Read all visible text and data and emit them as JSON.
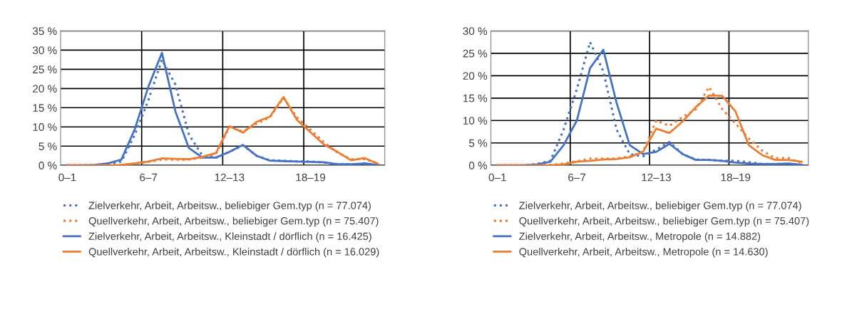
{
  "chart_data": [
    {
      "type": "line",
      "categories": [
        "0–1",
        null,
        null,
        null,
        null,
        null,
        "6–7",
        null,
        null,
        null,
        null,
        null,
        "12–13",
        null,
        null,
        null,
        null,
        null,
        "18–19",
        null,
        null,
        null,
        null,
        null
      ],
      "ylim": [
        0,
        35
      ],
      "yticks": [
        {
          "value": 0,
          "label": "0 %"
        },
        {
          "value": 5,
          "label": "5 %"
        },
        {
          "value": 10,
          "label": "10 %"
        },
        {
          "value": 15,
          "label": "15 %"
        },
        {
          "value": 20,
          "label": "20 %"
        },
        {
          "value": 25,
          "label": "25 %"
        },
        {
          "value": 30,
          "label": "30 %"
        },
        {
          "value": 35,
          "label": "35 %"
        }
      ],
      "grid": true,
      "legend": "bottom",
      "marker": "none",
      "series": [
        {
          "name": "Zielverkehr, Arbeit, Arbeitsw., beliebiger Gem.typ (n = 77.074)",
          "color": "#4472c4",
          "line_style": "dotted",
          "values": [
            0,
            0,
            0,
            0.3,
            1,
            8,
            17,
            27.5,
            21,
            8,
            2.5,
            2,
            3.5,
            5.2,
            2.5,
            1.3,
            1.2,
            1,
            1,
            0.7,
            0.3,
            0.3,
            0.3,
            0.1
          ]
        },
        {
          "name": "Quellverkehr, Arbeit, Arbeitsw., beliebiger Gem.typ (n = 75.407)",
          "color": "#ed7d31",
          "line_style": "dotted",
          "values": [
            0,
            0,
            0,
            0,
            0.1,
            0.4,
            0.9,
            1.5,
            1.5,
            1.5,
            2,
            3,
            10,
            8.8,
            10.8,
            12.5,
            17.5,
            12.5,
            9.3,
            6,
            3.3,
            1.6,
            1.6,
            0.5
          ]
        },
        {
          "name": "Zielverkehr, Arbeit, Arbeitsw., Kleinstadt / dörflich (n = 16.425)",
          "color": "#4472c4",
          "line_style": "solid",
          "values": [
            0,
            0,
            0.1,
            0.5,
            1.5,
            9.5,
            20.5,
            29.3,
            14,
            4.5,
            2,
            2,
            3.5,
            5.3,
            2.5,
            1.2,
            1.1,
            1,
            0.9,
            0.8,
            0.3,
            0.3,
            0.5,
            0.1
          ]
        },
        {
          "name": "Quellverkehr, Arbeit, Arbeitsw., Kleinstadt / dörflich (n = 16.029)",
          "color": "#ed7d31",
          "line_style": "solid",
          "values": [
            0,
            0,
            0,
            0,
            0.1,
            0.5,
            1,
            1.8,
            1.7,
            1.6,
            2.2,
            3.2,
            10.2,
            8.5,
            11.3,
            12.7,
            17.8,
            11.8,
            8.6,
            5.4,
            3.5,
            1.3,
            1.9,
            0.4
          ]
        }
      ]
    },
    {
      "type": "line",
      "categories": [
        "0–1",
        null,
        null,
        null,
        null,
        null,
        "6–7",
        null,
        null,
        null,
        null,
        null,
        "12–13",
        null,
        null,
        null,
        null,
        null,
        "18–19",
        null,
        null,
        null,
        null,
        null
      ],
      "ylim": [
        0,
        30
      ],
      "yticks": [
        {
          "value": 0,
          "label": "0 %"
        },
        {
          "value": 5,
          "label": "5 %"
        },
        {
          "value": 10,
          "label": "10 %"
        },
        {
          "value": 15,
          "label": "15 %"
        },
        {
          "value": 20,
          "label": "20 %"
        },
        {
          "value": 25,
          "label": "25 %"
        },
        {
          "value": 30,
          "label": "30 %"
        }
      ],
      "grid": true,
      "legend": "bottom",
      "marker": "none",
      "series": [
        {
          "name": "Zielverkehr, Arbeit, Arbeitsw., beliebiger Gem.typ (n = 77.074)",
          "color": "#4472c4",
          "line_style": "dotted",
          "values": [
            0,
            0,
            0,
            0.3,
            1,
            8,
            17,
            27.5,
            21,
            8,
            2.5,
            2,
            3.5,
            5.2,
            2.5,
            1.3,
            1.2,
            1,
            1,
            0.7,
            0.3,
            0.3,
            0.3,
            0.1
          ]
        },
        {
          "name": "Quellverkehr, Arbeit, Arbeitsw., beliebiger Gem.typ (n = 75.407)",
          "color": "#ed7d31",
          "line_style": "dotted",
          "values": [
            0,
            0,
            0,
            0,
            0.1,
            0.4,
            0.9,
            1.5,
            1.5,
            1.5,
            2,
            3,
            10,
            8.8,
            10.8,
            12.5,
            17.5,
            12.5,
            9.3,
            6,
            3.3,
            1.6,
            1.6,
            0.5
          ]
        },
        {
          "name": "Zielverkehr, Arbeit, Arbeitsw., Metropole (n = 14.882)",
          "color": "#4472c4",
          "line_style": "solid",
          "values": [
            0,
            0,
            0,
            0.2,
            0.8,
            4.5,
            10,
            21.7,
            25.8,
            14,
            4.5,
            2.5,
            3,
            4.8,
            2.5,
            1.2,
            1.2,
            1,
            0.6,
            0.4,
            0.3,
            0.3,
            0.4,
            0.1
          ]
        },
        {
          "name": "Quellverkehr, Arbeit, Arbeitsw., Metropole (n = 14.630)",
          "color": "#ed7d31",
          "line_style": "solid",
          "values": [
            0,
            0,
            0,
            0,
            0,
            0.2,
            0.8,
            1,
            1.3,
            1.4,
            1.8,
            3,
            8.2,
            7.2,
            9.8,
            13,
            15.6,
            15.5,
            12,
            4.5,
            2.3,
            1.2,
            1.2,
            0.8
          ]
        }
      ]
    }
  ]
}
